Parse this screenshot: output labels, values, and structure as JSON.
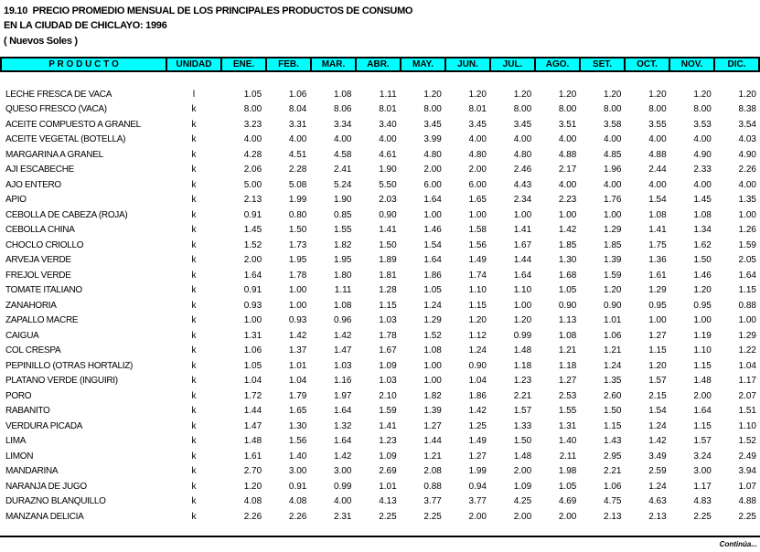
{
  "page": {
    "title_line1": "19.10  PRECIO PROMEDIO MENSUAL DE LOS PRINCIPALES PRODUCTOS DE CONSUMO",
    "title_line2": "EN LA CIUDAD DE CHICLAYO: 1996",
    "title_line3": "( Nuevos Soles )",
    "continuation_note": "Continúa..."
  },
  "colors": {
    "header_background": "#00FFFF",
    "border": "#000000",
    "text": "#000000",
    "page_background": "#FFFFFF"
  },
  "table": {
    "product_header": "P R O D U C T O",
    "unit_header": "UNIDAD",
    "month_headers": [
      "ENE.",
      "FEB.",
      "MAR.",
      "ABR.",
      "MAY.",
      "JUN.",
      "JUL.",
      "AGO.",
      "SET.",
      "OCT.",
      "NOV.",
      "DIC."
    ],
    "rows": [
      {
        "product": "LECHE FRESCA DE VACA",
        "unit": "l",
        "values": [
          "1.05",
          "1.06",
          "1.08",
          "1.11",
          "1.20",
          "1.20",
          "1.20",
          "1.20",
          "1.20",
          "1.20",
          "1.20",
          "1.20"
        ]
      },
      {
        "product": "QUESO FRESCO (VACA)",
        "unit": "k",
        "values": [
          "8.00",
          "8.04",
          "8.06",
          "8.01",
          "8.00",
          "8.01",
          "8.00",
          "8.00",
          "8.00",
          "8.00",
          "8.00",
          "8.38"
        ]
      },
      {
        "product": "ACEITE COMPUESTO A GRANEL",
        "unit": "k",
        "values": [
          "3.23",
          "3.31",
          "3.34",
          "3.40",
          "3.45",
          "3.45",
          "3.45",
          "3.51",
          "3.58",
          "3.55",
          "3.53",
          "3.54"
        ]
      },
      {
        "product": "ACEITE VEGETAL (BOTELLA)",
        "unit": "k",
        "values": [
          "4.00",
          "4.00",
          "4.00",
          "4.00",
          "3.99",
          "4.00",
          "4.00",
          "4.00",
          "4.00",
          "4.00",
          "4.00",
          "4.03"
        ]
      },
      {
        "product": "MARGARINA A GRANEL",
        "unit": "k",
        "values": [
          "4.28",
          "4.51",
          "4.58",
          "4.61",
          "4.80",
          "4.80",
          "4.80",
          "4.88",
          "4.85",
          "4.88",
          "4.90",
          "4.90"
        ]
      },
      {
        "product": "AJI ESCABECHE",
        "unit": "k",
        "values": [
          "2.06",
          "2.28",
          "2.41",
          "1.90",
          "2.00",
          "2.00",
          "2.46",
          "2.17",
          "1.96",
          "2.44",
          "2.33",
          "2.26"
        ]
      },
      {
        "product": "AJO ENTERO",
        "unit": "k",
        "values": [
          "5.00",
          "5.08",
          "5.24",
          "5.50",
          "6.00",
          "6.00",
          "4.43",
          "4.00",
          "4.00",
          "4.00",
          "4.00",
          "4.00"
        ]
      },
      {
        "product": "APIO",
        "unit": "k",
        "values": [
          "2.13",
          "1.99",
          "1.90",
          "2.03",
          "1.64",
          "1.65",
          "2.34",
          "2.23",
          "1.76",
          "1.54",
          "1.45",
          "1.35"
        ]
      },
      {
        "product": "CEBOLLA DE CABEZA (ROJA)",
        "unit": "k",
        "values": [
          "0.91",
          "0.80",
          "0.85",
          "0.90",
          "1.00",
          "1.00",
          "1.00",
          "1.00",
          "1.00",
          "1.08",
          "1.08",
          "1.00"
        ]
      },
      {
        "product": "CEBOLLA CHINA",
        "unit": "k",
        "values": [
          "1.45",
          "1.50",
          "1.55",
          "1.41",
          "1.46",
          "1.58",
          "1.41",
          "1.42",
          "1.29",
          "1.41",
          "1.34",
          "1.26"
        ]
      },
      {
        "product": "CHOCLO CRIOLLO",
        "unit": "k",
        "values": [
          "1.52",
          "1.73",
          "1.82",
          "1.50",
          "1.54",
          "1.56",
          "1.67",
          "1.85",
          "1.85",
          "1.75",
          "1.62",
          "1.59"
        ]
      },
      {
        "product": "ARVEJA VERDE",
        "unit": "k",
        "values": [
          "2.00",
          "1.95",
          "1.95",
          "1.89",
          "1.64",
          "1.49",
          "1.44",
          "1.30",
          "1.39",
          "1.36",
          "1.50",
          "2.05"
        ]
      },
      {
        "product": "FREJOL VERDE",
        "unit": "k",
        "values": [
          "1.64",
          "1.78",
          "1.80",
          "1.81",
          "1.86",
          "1.74",
          "1.64",
          "1.68",
          "1.59",
          "1.61",
          "1.46",
          "1.64"
        ]
      },
      {
        "product": "TOMATE ITALIANO",
        "unit": "k",
        "values": [
          "0.91",
          "1.00",
          "1.11",
          "1.28",
          "1.05",
          "1.10",
          "1.10",
          "1.05",
          "1.20",
          "1.29",
          "1.20",
          "1.15"
        ]
      },
      {
        "product": "ZANAHORIA",
        "unit": "k",
        "values": [
          "0.93",
          "1.00",
          "1.08",
          "1.15",
          "1.24",
          "1.15",
          "1.00",
          "0.90",
          "0.90",
          "0.95",
          "0.95",
          "0.88"
        ]
      },
      {
        "product": "ZAPALLO MACRE",
        "unit": "k",
        "values": [
          "1.00",
          "0.93",
          "0.96",
          "1.03",
          "1.29",
          "1.20",
          "1.20",
          "1.13",
          "1.01",
          "1.00",
          "1.00",
          "1.00"
        ]
      },
      {
        "product": "CAIGUA",
        "unit": "k",
        "values": [
          "1.31",
          "1.42",
          "1.42",
          "1.78",
          "1.52",
          "1.12",
          "0.99",
          "1.08",
          "1.06",
          "1.27",
          "1.19",
          "1.29"
        ]
      },
      {
        "product": "COL CRESPA",
        "unit": "k",
        "values": [
          "1.06",
          "1.37",
          "1.47",
          "1.67",
          "1.08",
          "1.24",
          "1.48",
          "1.21",
          "1.21",
          "1.15",
          "1.10",
          "1.22"
        ]
      },
      {
        "product": "PEPINILLO (OTRAS HORTALIZ)",
        "unit": "k",
        "values": [
          "1.05",
          "1.01",
          "1.03",
          "1.09",
          "1.00",
          "0.90",
          "1.18",
          "1.18",
          "1.24",
          "1.20",
          "1.15",
          "1.04"
        ]
      },
      {
        "product": "PLATANO VERDE (INGUIRI)",
        "unit": "k",
        "values": [
          "1.04",
          "1.04",
          "1.16",
          "1.03",
          "1.00",
          "1.04",
          "1.23",
          "1.27",
          "1.35",
          "1.57",
          "1.48",
          "1.17"
        ]
      },
      {
        "product": "PORO",
        "unit": "k",
        "values": [
          "1.72",
          "1.79",
          "1.97",
          "2.10",
          "1.82",
          "1.86",
          "2.21",
          "2.53",
          "2.60",
          "2.15",
          "2.00",
          "2.07"
        ]
      },
      {
        "product": "RABANITO",
        "unit": "k",
        "values": [
          "1.44",
          "1.65",
          "1.64",
          "1.59",
          "1.39",
          "1.42",
          "1.57",
          "1.55",
          "1.50",
          "1.54",
          "1.64",
          "1.51"
        ]
      },
      {
        "product": "VERDURA PICADA",
        "unit": "k",
        "values": [
          "1.47",
          "1.30",
          "1.32",
          "1.41",
          "1.27",
          "1.25",
          "1.33",
          "1.31",
          "1.15",
          "1.24",
          "1.15",
          "1.10"
        ]
      },
      {
        "product": "LIMA",
        "unit": "k",
        "values": [
          "1.48",
          "1.56",
          "1.64",
          "1.23",
          "1.44",
          "1.49",
          "1.50",
          "1.40",
          "1.43",
          "1.42",
          "1.57",
          "1.52"
        ]
      },
      {
        "product": "LIMON",
        "unit": "k",
        "values": [
          "1.61",
          "1.40",
          "1.42",
          "1.09",
          "1.21",
          "1.27",
          "1.48",
          "2.11",
          "2.95",
          "3.49",
          "3.24",
          "2.49"
        ]
      },
      {
        "product": "MANDARINA",
        "unit": "k",
        "values": [
          "2.70",
          "3.00",
          "3.00",
          "2.69",
          "2.08",
          "1.99",
          "2.00",
          "1.98",
          "2.21",
          "2.59",
          "3.00",
          "3.94"
        ]
      },
      {
        "product": "NARANJA DE JUGO",
        "unit": "k",
        "values": [
          "1.20",
          "0.91",
          "0.99",
          "1.01",
          "0.88",
          "0.94",
          "1.09",
          "1.05",
          "1.06",
          "1.24",
          "1.17",
          "1.07"
        ]
      },
      {
        "product": "DURAZNO BLANQUILLO",
        "unit": "k",
        "values": [
          "4.08",
          "4.08",
          "4.00",
          "4.13",
          "3.77",
          "3.77",
          "4.25",
          "4.69",
          "4.75",
          "4.63",
          "4.83",
          "4.88"
        ]
      },
      {
        "product": "MANZANA DELICIA",
        "unit": "k",
        "values": [
          "2.26",
          "2.26",
          "2.31",
          "2.25",
          "2.25",
          "2.00",
          "2.00",
          "2.00",
          "2.13",
          "2.13",
          "2.25",
          "2.25"
        ]
      }
    ]
  }
}
